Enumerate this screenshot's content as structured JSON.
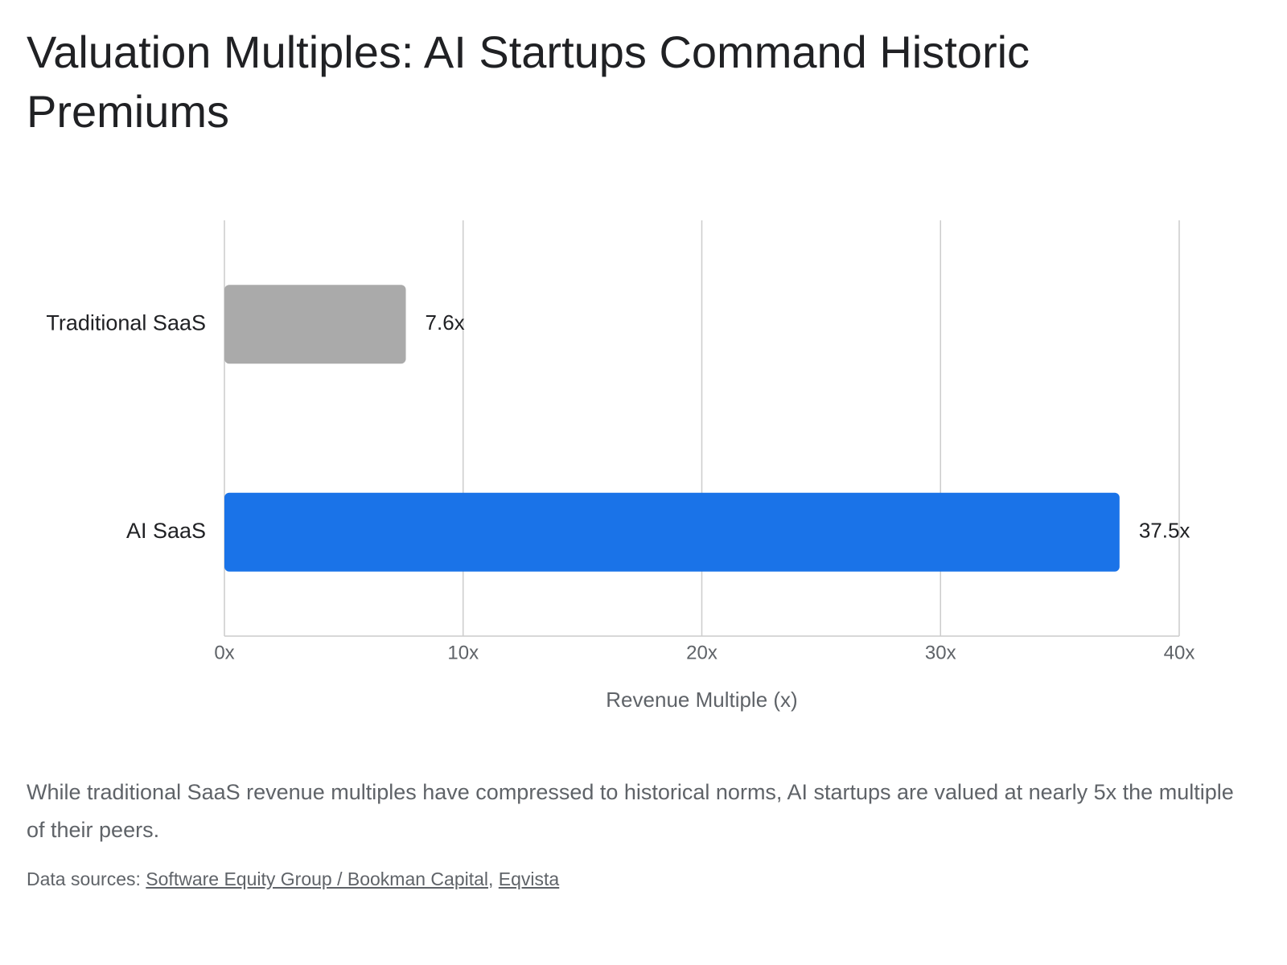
{
  "chart_data": {
    "type": "bar",
    "orientation": "horizontal",
    "title": "Valuation Multiples: AI Startups Command Historic Premiums",
    "categories": [
      "Traditional SaaS",
      "AI SaaS"
    ],
    "values": [
      7.6,
      37.5
    ],
    "value_labels": [
      "7.6x",
      "37.5x"
    ],
    "colors": [
      "#aaaaaa",
      "#1a73e8"
    ],
    "xlabel": "Revenue Multiple (x)",
    "xlim": [
      0,
      40
    ],
    "xticks": [
      {
        "value": 0,
        "label": "0x"
      },
      {
        "value": 10,
        "label": "10x"
      },
      {
        "value": 20,
        "label": "20x"
      },
      {
        "value": 30,
        "label": "30x"
      },
      {
        "value": 40,
        "label": "40x"
      }
    ],
    "grid": true,
    "caption": "While traditional SaaS revenue multiples have compressed to historical norms, AI startups are valued at nearly 5x the multiple of their peers.",
    "source_label": "Data sources:",
    "sources": [
      "Software Equity Group / Bookman Capital",
      "Eqvista"
    ],
    "source_separator": ","
  }
}
